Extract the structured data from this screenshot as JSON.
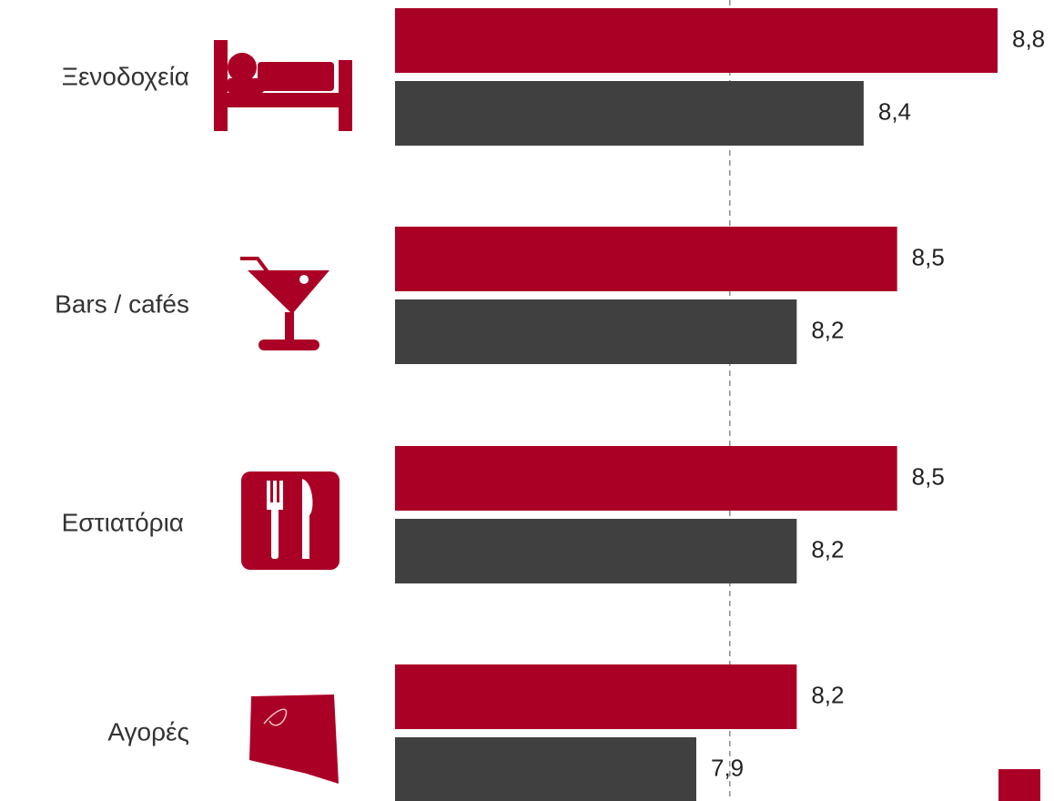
{
  "chart_data": {
    "type": "bar",
    "orientation": "horizontal",
    "categories": [
      "Ξενοδοχεία",
      "Bars / cafés",
      "Εστιατόρια",
      "Αγορές"
    ],
    "category_icons": [
      "bed-icon",
      "cocktail-glass-icon",
      "fork-knife-icon",
      "shopping-bag-icon"
    ],
    "series": [
      {
        "values": [
          8.8,
          8.5,
          8.5,
          8.2
        ],
        "value_labels": [
          "8,8",
          "8,5",
          "8,5",
          "8,2"
        ]
      },
      {
        "values": [
          8.4,
          8.2,
          8.2,
          7.9
        ],
        "value_labels": [
          "8,4",
          "8,2",
          "8,2",
          "7,9"
        ]
      }
    ],
    "series_colors": [
      "#ab0025",
      "#404040"
    ],
    "reference_line": {
      "value": 8.0,
      "style": "dashed",
      "color": "#8c8c8c"
    },
    "legend": {
      "items": [
        {
          "label": "",
          "color": "#ab0025"
        }
      ],
      "position": "bottom-right"
    },
    "title": "",
    "xlabel": "",
    "ylabel": "",
    "xlim": [
      7.0,
      8.8
    ],
    "grid": false
  }
}
